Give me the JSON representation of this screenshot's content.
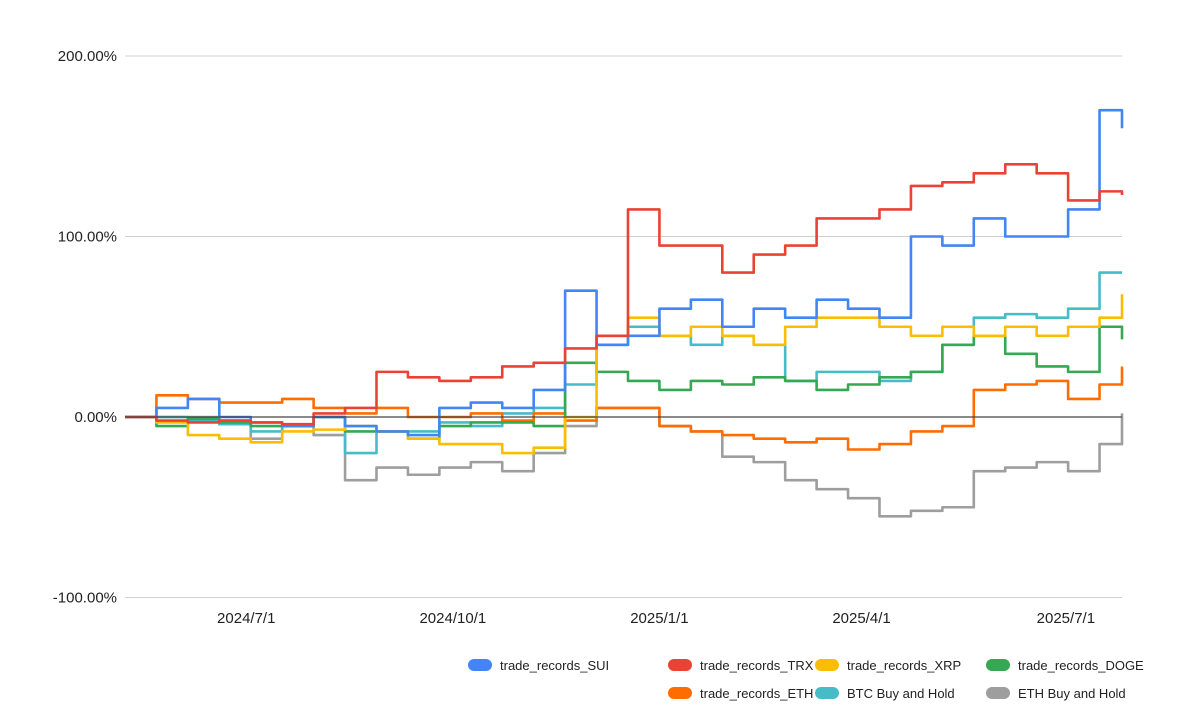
{
  "chart_data": {
    "type": "line",
    "title": "",
    "xlabel": "",
    "ylabel": "",
    "ylim": [
      -100,
      200
    ],
    "yticks": [
      "200.00%",
      "100.00%",
      "0.00%",
      "-100.00%"
    ],
    "ytick_values": [
      200,
      100,
      0,
      -100
    ],
    "xticks": [
      "2024/7/1",
      "2024/10/1",
      "2025/1/1",
      "2025/4/1",
      "2025/7/1"
    ],
    "xtick_dates": [
      "2024-07-01",
      "2024-10-01",
      "2025-01-01",
      "2025-04-01",
      "2025-07-01"
    ],
    "xlim": [
      "2024-05-08",
      "2025-07-26"
    ],
    "grid": true,
    "legend_position": "bottom-right",
    "x": [
      "2024-05-08",
      "2024-05-22",
      "2024-06-05",
      "2024-06-19",
      "2024-07-03",
      "2024-07-17",
      "2024-07-31",
      "2024-08-14",
      "2024-08-28",
      "2024-09-11",
      "2024-09-25",
      "2024-10-09",
      "2024-10-23",
      "2024-11-06",
      "2024-11-20",
      "2024-12-04",
      "2024-12-18",
      "2025-01-01",
      "2025-01-15",
      "2025-01-29",
      "2025-02-12",
      "2025-02-26",
      "2025-03-12",
      "2025-03-26",
      "2025-04-09",
      "2025-04-23",
      "2025-05-07",
      "2025-05-21",
      "2025-06-04",
      "2025-06-18",
      "2025-07-02",
      "2025-07-16",
      "2025-07-26"
    ],
    "series": [
      {
        "name": "trade_records_SUI",
        "color": "#4285f4",
        "values": [
          0,
          5,
          10,
          0,
          -3,
          -5,
          0,
          -5,
          -8,
          -10,
          5,
          8,
          5,
          15,
          70,
          40,
          45,
          60,
          65,
          50,
          60,
          55,
          65,
          60,
          55,
          100,
          95,
          110,
          100,
          100,
          115,
          170,
          160
        ]
      },
      {
        "name": "trade_records_TRX",
        "color": "#ea4335",
        "values": [
          0,
          -2,
          -3,
          -2,
          -3,
          -4,
          2,
          5,
          25,
          22,
          20,
          22,
          28,
          30,
          38,
          45,
          115,
          95,
          95,
          80,
          90,
          95,
          110,
          110,
          115,
          128,
          130,
          135,
          140,
          135,
          120,
          125,
          123
        ]
      },
      {
        "name": "trade_records_XRP",
        "color": "#fbbc04",
        "values": [
          0,
          -3,
          -10,
          -12,
          -14,
          -8,
          -7,
          -5,
          -8,
          -12,
          -15,
          -15,
          -20,
          -17,
          0,
          45,
          55,
          45,
          50,
          45,
          40,
          50,
          55,
          55,
          50,
          45,
          50,
          45,
          50,
          45,
          50,
          55,
          68
        ]
      },
      {
        "name": "trade_records_DOGE",
        "color": "#34a853",
        "values": [
          0,
          -5,
          -1,
          -3,
          -5,
          -5,
          0,
          -8,
          -8,
          -12,
          -5,
          -3,
          -3,
          -5,
          30,
          25,
          20,
          15,
          20,
          18,
          22,
          20,
          15,
          18,
          22,
          25,
          40,
          45,
          35,
          28,
          25,
          50,
          43
        ]
      },
      {
        "name": "trade_records_ETH",
        "color": "#ff6d01",
        "values": [
          0,
          12,
          10,
          8,
          8,
          10,
          5,
          2,
          5,
          0,
          0,
          2,
          -2,
          2,
          -2,
          5,
          5,
          -5,
          -8,
          -10,
          -12,
          -14,
          -12,
          -18,
          -15,
          -8,
          -5,
          15,
          18,
          20,
          10,
          18,
          28
        ]
      },
      {
        "name": "BTC Buy and Hold",
        "color": "#46bdc6",
        "values": [
          0,
          0,
          -2,
          -4,
          -8,
          -5,
          0,
          -20,
          -8,
          -8,
          -3,
          -5,
          2,
          5,
          18,
          40,
          50,
          45,
          40,
          45,
          40,
          20,
          25,
          25,
          20,
          25,
          40,
          55,
          57,
          55,
          60,
          80,
          80
        ]
      },
      {
        "name": "ETH Buy and Hold",
        "color": "#9e9e9e",
        "values": [
          0,
          0,
          0,
          -2,
          -12,
          -5,
          -10,
          -35,
          -28,
          -32,
          -28,
          -25,
          -30,
          -20,
          -5,
          5,
          5,
          -5,
          -8,
          -22,
          -25,
          -35,
          -40,
          -45,
          -55,
          -52,
          -50,
          -30,
          -28,
          -25,
          -30,
          -15,
          2
        ]
      }
    ]
  }
}
